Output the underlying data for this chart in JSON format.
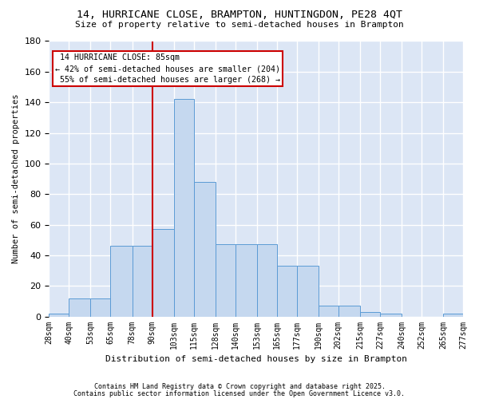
{
  "title1": "14, HURRICANE CLOSE, BRAMPTON, HUNTINGDON, PE28 4QT",
  "title2": "Size of property relative to semi-detached houses in Brampton",
  "xlabel": "Distribution of semi-detached houses by size in Brampton",
  "ylabel": "Number of semi-detached properties",
  "tick_positions": [
    28,
    40,
    53,
    65,
    78,
    90,
    103,
    115,
    128,
    140,
    153,
    165,
    177,
    190,
    202,
    215,
    227,
    240,
    252,
    265,
    277
  ],
  "bin_labels": [
    "28sqm",
    "40sqm",
    "53sqm",
    "65sqm",
    "78sqm",
    "90sqm",
    "103sqm",
    "115sqm",
    "128sqm",
    "140sqm",
    "153sqm",
    "165sqm",
    "177sqm",
    "190sqm",
    "202sqm",
    "215sqm",
    "227sqm",
    "240sqm",
    "252sqm",
    "265sqm",
    "277sqm"
  ],
  "bar_heights": [
    2,
    12,
    12,
    46,
    46,
    57,
    142,
    88,
    47,
    47,
    47,
    33,
    33,
    7,
    7,
    3,
    2,
    0,
    0,
    2
  ],
  "bar_color": "#c5d8ef",
  "bar_edge_color": "#5b9bd5",
  "vline_x": 90,
  "vline_color": "#cc0000",
  "property_label": "14 HURRICANE CLOSE: 85sqm",
  "pct_smaller": 42,
  "n_smaller": 204,
  "pct_larger": 55,
  "n_larger": 268,
  "background_color": "#dce6f5",
  "grid_color": "#ffffff",
  "footer1": "Contains HM Land Registry data © Crown copyright and database right 2025.",
  "footer2": "Contains public sector information licensed under the Open Government Licence v3.0.",
  "ylim": [
    0,
    180
  ],
  "yticks": [
    0,
    20,
    40,
    60,
    80,
    100,
    120,
    140,
    160,
    180
  ]
}
